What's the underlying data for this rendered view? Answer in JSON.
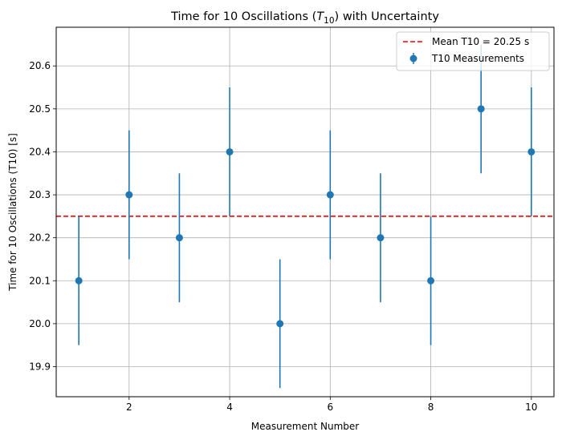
{
  "chart_data": {
    "type": "scatter",
    "title_main": "Time for 10 Oscillations (",
    "title_math_var": "T",
    "title_math_sub": "10",
    "title_tail": ") with Uncertainty",
    "xlabel": "Measurement Number",
    "ylabel": "Time for 10 Oscillations (T10) [s]",
    "xlim": [
      0.55,
      10.45
    ],
    "ylim": [
      19.83,
      20.69
    ],
    "xticks": [
      2,
      4,
      6,
      8,
      10
    ],
    "yticks": [
      19.9,
      20.0,
      20.1,
      20.2,
      20.3,
      20.4,
      20.5,
      20.6
    ],
    "grid": true,
    "legend_position": "top-right",
    "series": [
      {
        "name": "T10 Measurements",
        "color": "#1f77b4",
        "x": [
          1,
          2,
          3,
          4,
          5,
          6,
          7,
          8,
          9,
          10
        ],
        "y": [
          20.1,
          20.3,
          20.2,
          20.4,
          20.0,
          20.3,
          20.2,
          20.1,
          20.5,
          20.4
        ],
        "yerr": 0.15
      }
    ],
    "reference_line": {
      "name": "Mean T10 = 20.25 s",
      "y": 20.25,
      "color": "#ff0000",
      "style": "dashed"
    }
  }
}
